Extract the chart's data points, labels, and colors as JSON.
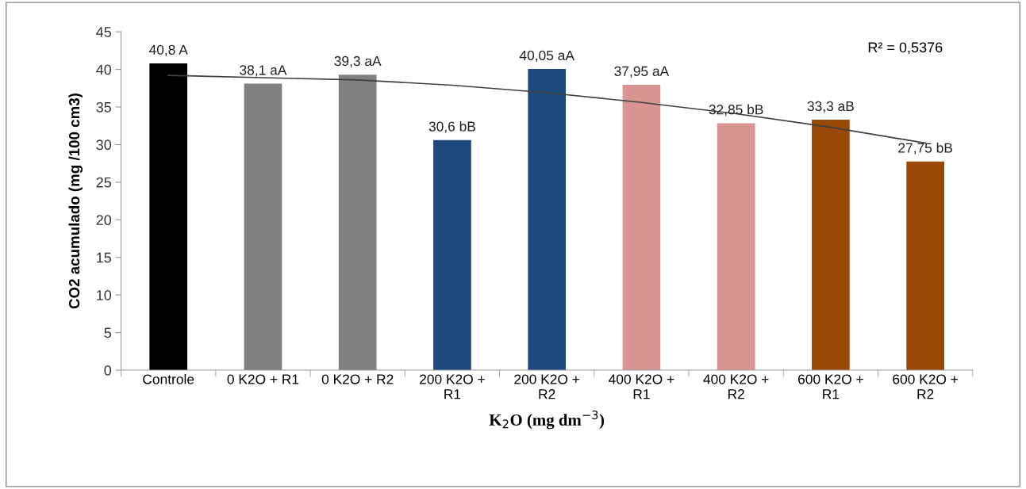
{
  "chart_data": {
    "type": "bar",
    "xlabel": "K$_{2}$O (mg dm$^{−3}$)",
    "ylabel": "CO2 acumulado (mg /100 cm3)",
    "categories": [
      "Controle",
      "0 K2O + R1",
      "0 K2O + R2",
      "200 K2O +\nR1",
      "200 K2O +\nR2",
      "400 K2O +\nR1",
      "400 K2O +\nR2",
      "600 K2O +\nR1",
      "600 K2O +\nR2"
    ],
    "series": [
      {
        "values": [
          40.8,
          38.1,
          39.3,
          30.6,
          40.05,
          37.95,
          32.85,
          33.3,
          27.75
        ],
        "colors": [
          "#000000",
          "#808080",
          "#808080",
          "#1f497d",
          "#1f497d",
          "#d99594",
          "#d99594",
          "#984807",
          "#984807"
        ],
        "value_labels": [
          "40,8 A",
          "38,1 aA",
          "39,3 aA",
          "30,6 bB",
          "40,05 aA",
          "37,95 aA",
          "32,85 bB",
          "33,3 aB",
          "27,75 bB"
        ]
      },
      {
        "type": "line",
        "color": "#404040",
        "values": [
          39.2,
          38.9,
          38.6,
          37.9,
          36.9,
          35.6,
          34.1,
          32.3,
          30.2
        ]
      }
    ],
    "annotations": [
      "R² = 0,5376"
    ],
    "ylim": [
      0,
      45
    ],
    "yticks": [
      0,
      5,
      10,
      15,
      20,
      25,
      30,
      35,
      40,
      45
    ],
    "grid": false,
    "legend": false
  }
}
